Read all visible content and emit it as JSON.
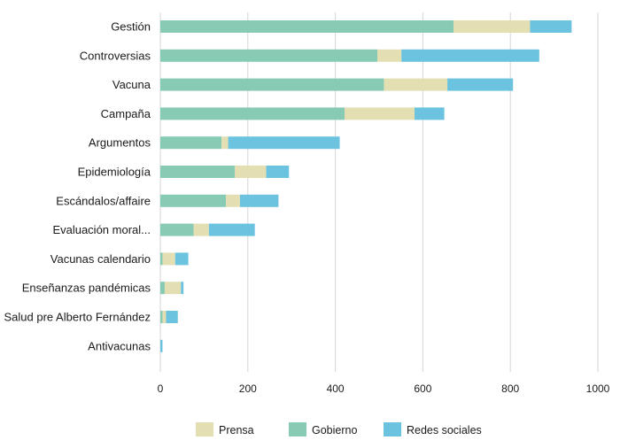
{
  "chart_data": {
    "type": "bar",
    "orientation": "horizontal",
    "stacked": true,
    "categories": [
      "Gestión",
      "Controversias",
      "Vacuna",
      "Campaña",
      "Argumentos",
      "Epidemiología",
      "Escándalos/affaire",
      "Evaluación moral...",
      "Vacunas calendario",
      "Enseñanzas pandémicas",
      "Salud pre Alberto Fernández",
      "Antivacunas"
    ],
    "series": [
      {
        "name": "Gobierno",
        "color": "#87cbb5",
        "values": [
          670,
          496,
          511,
          421,
          140,
          170,
          150,
          76,
          5,
          10,
          5,
          0
        ]
      },
      {
        "name": "Prensa",
        "color": "#e3dfb3",
        "values": [
          175,
          55,
          145,
          160,
          15,
          72,
          32,
          35,
          29,
          37,
          8,
          0
        ]
      },
      {
        "name": "Redes sociales",
        "color": "#6cc3df",
        "values": [
          95,
          315,
          150,
          68,
          255,
          52,
          88,
          105,
          30,
          6,
          27,
          5
        ]
      }
    ],
    "xlim": [
      0,
      1000
    ],
    "xticks": [
      0,
      200,
      400,
      600,
      800,
      1000
    ],
    "xtick_labels": [
      "0",
      "200",
      "400",
      "600",
      "800",
      "1000"
    ],
    "grid": "vertical",
    "legend": {
      "position": "bottom",
      "order": [
        "Prensa",
        "Gobierno",
        "Redes sociales"
      ]
    },
    "title": "",
    "xlabel": "",
    "ylabel": ""
  }
}
